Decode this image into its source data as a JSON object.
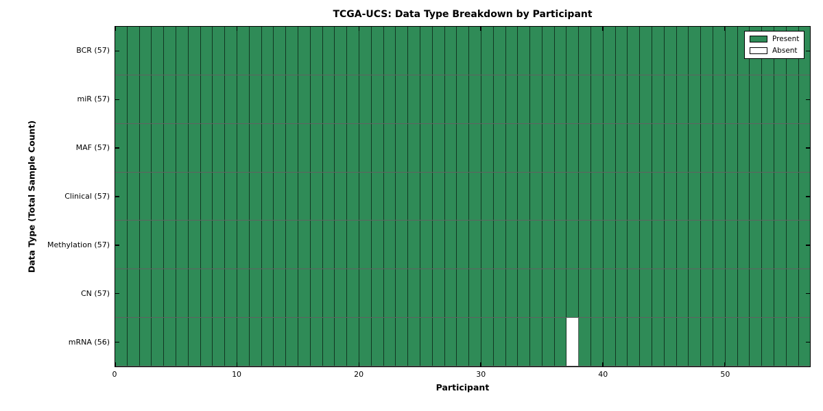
{
  "figure": {
    "background": "#ffffff"
  },
  "chart_data": {
    "type": "heatmap",
    "title": "TCGA-UCS: Data Type Breakdown by Participant",
    "xlabel": "Participant",
    "ylabel": "Data Type (Total Sample Count)",
    "n_participants": 57,
    "x_range": [
      0,
      57
    ],
    "x_ticks": [
      0,
      10,
      20,
      30,
      40,
      50
    ],
    "grid": true,
    "legend_position": "upper right",
    "rows": [
      {
        "name": "BCR",
        "label": "BCR (57)",
        "present_count": 57,
        "absent_participants": []
      },
      {
        "name": "miR",
        "label": "miR (57)",
        "present_count": 57,
        "absent_participants": []
      },
      {
        "name": "MAF",
        "label": "MAF (57)",
        "present_count": 57,
        "absent_participants": []
      },
      {
        "name": "Clinical",
        "label": "Clinical (57)",
        "present_count": 57,
        "absent_participants": []
      },
      {
        "name": "Methylation",
        "label": "Methylation (57)",
        "present_count": 57,
        "absent_participants": []
      },
      {
        "name": "CN",
        "label": "CN (57)",
        "present_count": 57,
        "absent_participants": []
      },
      {
        "name": "mRNA",
        "label": "mRNA (56)",
        "present_count": 56,
        "absent_participants": [
          37
        ]
      }
    ],
    "legend": [
      {
        "label": "Present",
        "color": "#2f8b57"
      },
      {
        "label": "Absent",
        "color": "#ffffff"
      }
    ],
    "colors": {
      "present": "#2f8b57",
      "absent": "#ffffff",
      "edge": "#000000"
    }
  }
}
